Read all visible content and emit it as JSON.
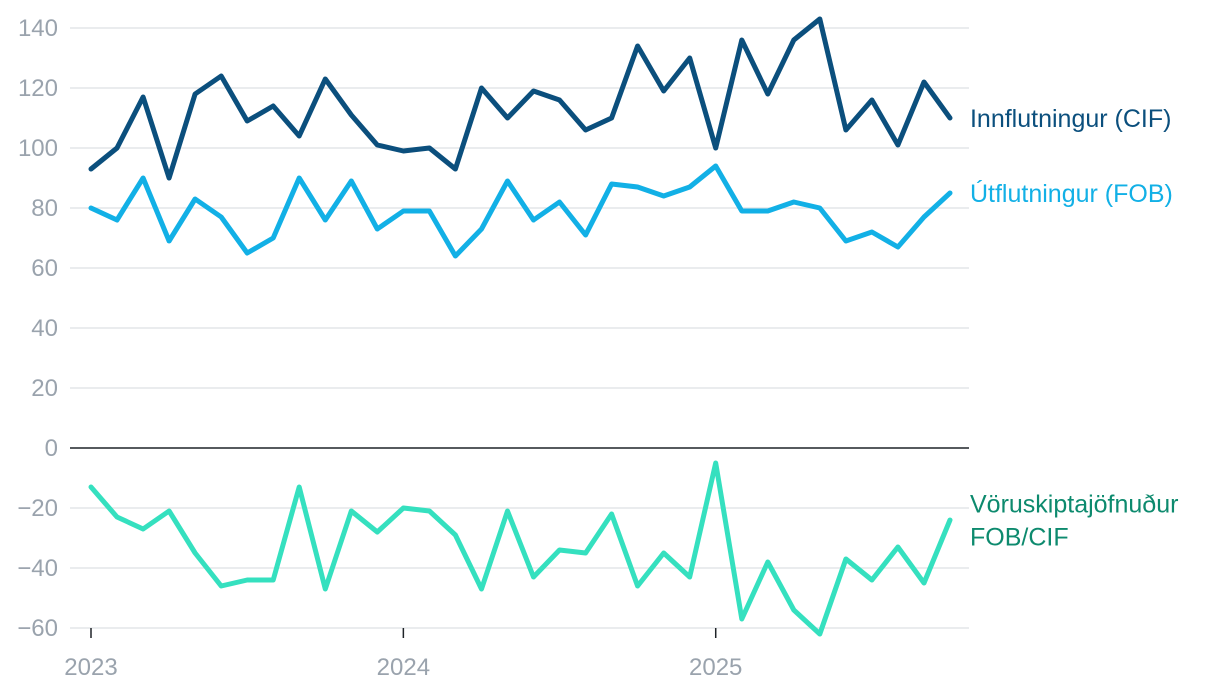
{
  "chart_data": {
    "type": "line",
    "x": [
      "2023-01",
      "2023-02",
      "2023-03",
      "2023-04",
      "2023-05",
      "2023-06",
      "2023-07",
      "2023-08",
      "2023-09",
      "2023-10",
      "2023-11",
      "2023-12",
      "2024-01",
      "2024-02",
      "2024-03",
      "2024-04",
      "2024-05",
      "2024-06",
      "2024-07",
      "2024-08",
      "2024-09",
      "2024-10",
      "2024-11",
      "2024-12",
      "2025-01",
      "2025-02",
      "2025-03",
      "2025-04",
      "2025-05",
      "2025-06",
      "2025-07",
      "2025-08",
      "2025-09",
      "2025-10"
    ],
    "series": [
      {
        "name": "Innflutningur (CIF)",
        "color": "#0b4f7d",
        "values": [
          93,
          100,
          117,
          90,
          118,
          124,
          109,
          114,
          104,
          123,
          111,
          101,
          99,
          100,
          93,
          120,
          110,
          119,
          116,
          106,
          110,
          134,
          119,
          130,
          100,
          136,
          118,
          136,
          143,
          106,
          116,
          101,
          122,
          110
        ]
      },
      {
        "name": "Útflutningur (FOB)",
        "color": "#12b0e6",
        "values": [
          80,
          76,
          90,
          69,
          83,
          77,
          65,
          70,
          90,
          76,
          89,
          73,
          79,
          79,
          64,
          73,
          89,
          76,
          82,
          71,
          88,
          87,
          84,
          87,
          94,
          79,
          79,
          82,
          80,
          69,
          72,
          67,
          77,
          85
        ]
      },
      {
        "name": "Vöruskiptajöfnuður FOB/CIF",
        "name_lines": [
          "Vöruskiptajöfnuður",
          "FOB/CIF"
        ],
        "color": "#35e0bf",
        "label_color": "#0d8a6e",
        "values": [
          -13,
          -23,
          -27,
          -21,
          -35,
          -46,
          -44,
          -44,
          -13,
          -47,
          -21,
          -28,
          -20,
          -21,
          -29,
          -47,
          -21,
          -43,
          -34,
          -35,
          -22,
          -46,
          -35,
          -43,
          -5,
          -57,
          -38,
          -54,
          -62,
          -37,
          -44,
          -33,
          -45,
          -24
        ]
      }
    ],
    "ylim": [
      -60,
      143
    ],
    "yticks": [
      140,
      120,
      100,
      80,
      60,
      40,
      20,
      0,
      -20,
      -40,
      -60
    ],
    "ytick_labels": [
      "140",
      "120",
      "100",
      "80",
      "60",
      "40",
      "20",
      "0",
      "−20",
      "−40",
      "−60"
    ],
    "xticks": [
      {
        "index": 0,
        "label": "2023"
      },
      {
        "index": 12,
        "label": "2024"
      },
      {
        "index": 24,
        "label": "2025"
      }
    ],
    "grid": true,
    "legend": "direct labels at right end of each line",
    "title": "",
    "xlabel": "",
    "ylabel": ""
  }
}
